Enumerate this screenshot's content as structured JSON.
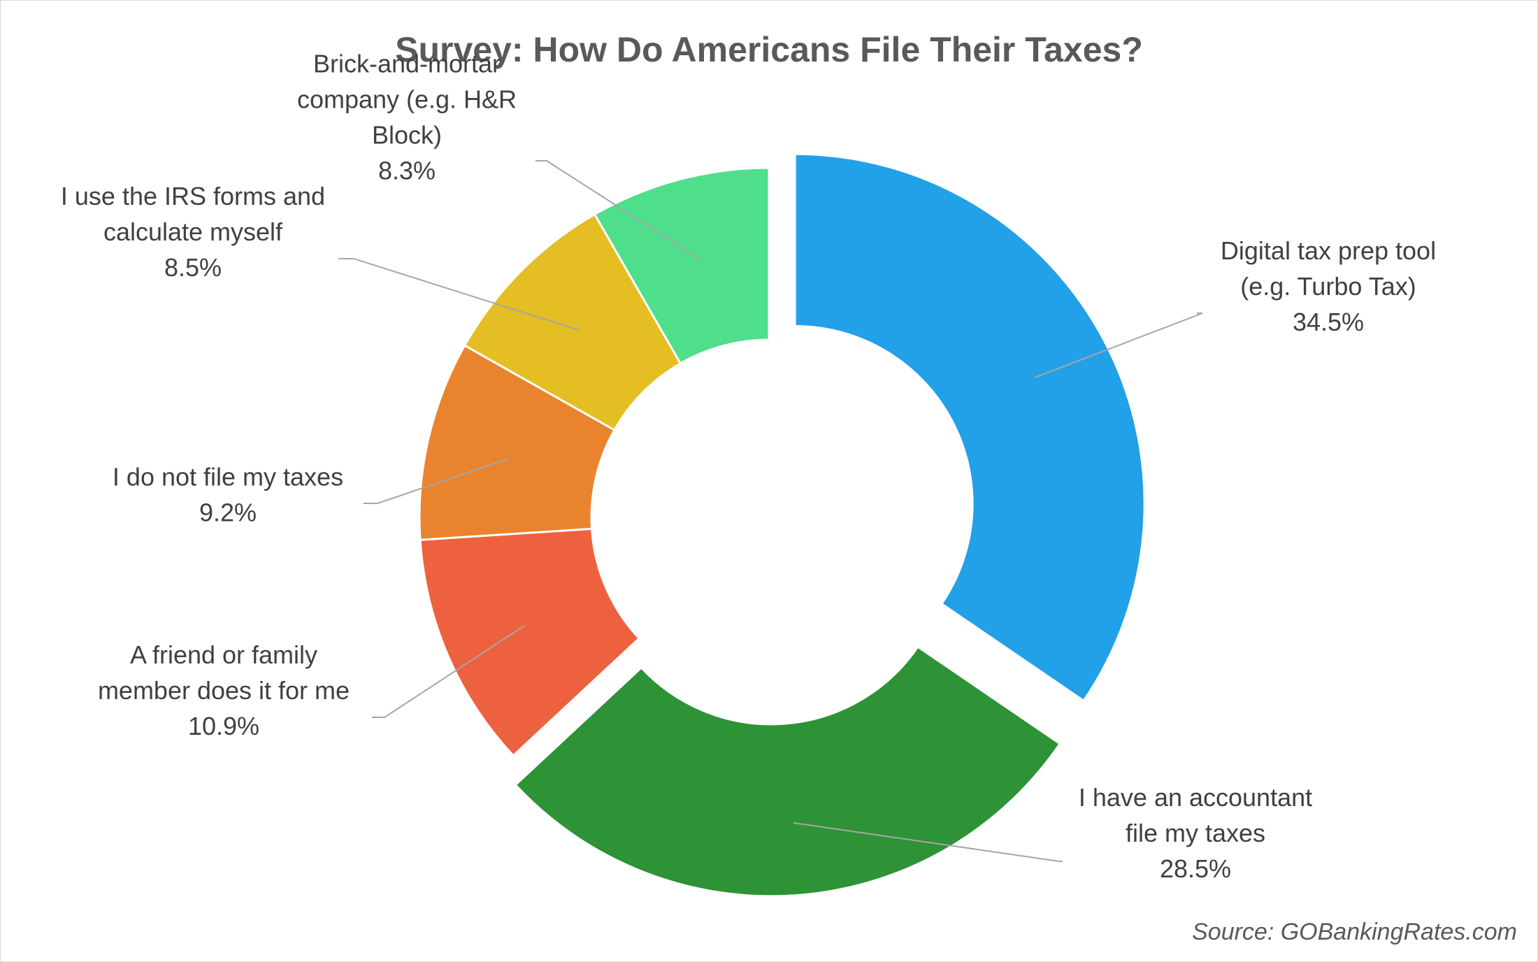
{
  "chart_data": {
    "type": "pie",
    "subtype": "doughnut",
    "title": "Survey: How Do Americans File Their Taxes?",
    "source": "Source: GOBankingRates.com",
    "slices": [
      {
        "label_lines": [
          "Digital tax prep tool",
          "(e.g. Turbo Tax)"
        ],
        "value": 34.5,
        "value_label": "34.5%",
        "color": "#22A0E8",
        "exploded": true
      },
      {
        "label_lines": [
          "I have an accountant",
          "file my taxes"
        ],
        "value": 28.5,
        "value_label": "28.5%",
        "color": "#2E9236",
        "exploded": true
      },
      {
        "label_lines": [
          "A friend or family",
          "member does it for me"
        ],
        "value": 10.9,
        "value_label": "10.9%",
        "color": "#EE613E",
        "exploded": false
      },
      {
        "label_lines": [
          "I do not file my taxes"
        ],
        "value": 9.2,
        "value_label": "9.2%",
        "color": "#EA832E",
        "exploded": false
      },
      {
        "label_lines": [
          "I use the IRS forms and",
          "calculate myself"
        ],
        "value": 8.5,
        "value_label": "8.5%",
        "color": "#E4BE22",
        "exploded": false
      },
      {
        "label_lines": [
          "Brick-and-mortar",
          "company (e.g. H&R",
          "Block)"
        ],
        "value": 8.3,
        "value_label": "8.3%",
        "color": "#4EDE8C",
        "exploded": false
      }
    ]
  }
}
